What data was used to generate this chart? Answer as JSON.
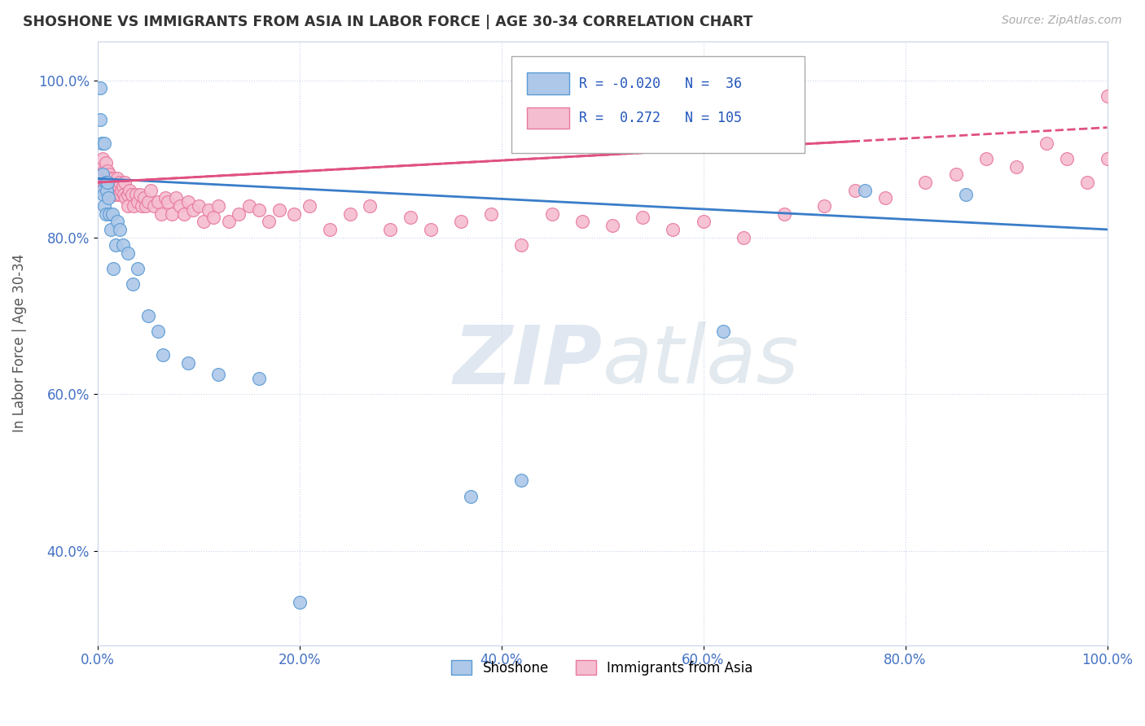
{
  "title": "SHOSHONE VS IMMIGRANTS FROM ASIA IN LABOR FORCE | AGE 30-34 CORRELATION CHART",
  "source_text": "Source: ZipAtlas.com",
  "ylabel": "In Labor Force | Age 30-34",
  "xlim": [
    0.0,
    1.0
  ],
  "ylim": [
    0.28,
    1.05
  ],
  "xticks": [
    0.0,
    0.2,
    0.4,
    0.6,
    0.8,
    1.0
  ],
  "xtick_labels": [
    "0.0%",
    "20.0%",
    "40.0%",
    "60.0%",
    "80.0%",
    "100.0%"
  ],
  "yticks": [
    0.4,
    0.6,
    0.8,
    1.0
  ],
  "ytick_labels": [
    "40.0%",
    "60.0%",
    "80.0%",
    "100.0%"
  ],
  "shoshone_color": "#adc8e8",
  "asia_color": "#f5bdd0",
  "shoshone_edge_color": "#5b9bd5",
  "asia_edge_color": "#e8799f",
  "shoshone_line_color": "#3a7dc9",
  "asia_line_color": "#e05080",
  "background_color": "#ffffff",
  "watermark_color": "#ccd8e8",
  "shoshone_trend_x0": 0.0,
  "shoshone_trend_x1": 1.0,
  "shoshone_trend_y0": 0.875,
  "shoshone_trend_y1": 0.81,
  "asia_trend_x0": 0.0,
  "asia_trend_x1": 1.0,
  "asia_trend_y0": 0.87,
  "asia_trend_y1": 0.94,
  "shoshone_x": [
    0.003,
    0.003,
    0.004,
    0.005,
    0.005,
    0.006,
    0.007,
    0.007,
    0.008,
    0.008,
    0.009,
    0.01,
    0.011,
    0.012,
    0.013,
    0.015,
    0.016,
    0.018,
    0.02,
    0.022,
    0.025,
    0.03,
    0.035,
    0.04,
    0.05,
    0.06,
    0.065,
    0.09,
    0.12,
    0.16,
    0.2,
    0.37,
    0.42,
    0.62,
    0.76,
    0.86
  ],
  "shoshone_y": [
    0.99,
    0.95,
    0.92,
    0.88,
    0.86,
    0.855,
    0.92,
    0.84,
    0.87,
    0.83,
    0.86,
    0.87,
    0.85,
    0.83,
    0.81,
    0.83,
    0.76,
    0.79,
    0.82,
    0.81,
    0.79,
    0.78,
    0.74,
    0.76,
    0.7,
    0.68,
    0.65,
    0.64,
    0.625,
    0.62,
    0.335,
    0.47,
    0.49,
    0.68,
    0.86,
    0.855
  ],
  "asia_x": [
    0.003,
    0.003,
    0.004,
    0.005,
    0.005,
    0.006,
    0.006,
    0.007,
    0.007,
    0.008,
    0.008,
    0.009,
    0.009,
    0.01,
    0.01,
    0.011,
    0.011,
    0.012,
    0.012,
    0.013,
    0.013,
    0.014,
    0.015,
    0.015,
    0.016,
    0.017,
    0.018,
    0.018,
    0.019,
    0.02,
    0.02,
    0.021,
    0.022,
    0.023,
    0.024,
    0.025,
    0.026,
    0.027,
    0.028,
    0.03,
    0.03,
    0.032,
    0.034,
    0.036,
    0.038,
    0.04,
    0.042,
    0.044,
    0.046,
    0.048,
    0.05,
    0.053,
    0.056,
    0.06,
    0.063,
    0.067,
    0.07,
    0.074,
    0.078,
    0.082,
    0.086,
    0.09,
    0.095,
    0.1,
    0.105,
    0.11,
    0.115,
    0.12,
    0.13,
    0.14,
    0.15,
    0.16,
    0.17,
    0.18,
    0.195,
    0.21,
    0.23,
    0.25,
    0.27,
    0.29,
    0.31,
    0.33,
    0.36,
    0.39,
    0.42,
    0.45,
    0.48,
    0.51,
    0.54,
    0.57,
    0.6,
    0.64,
    0.68,
    0.72,
    0.75,
    0.78,
    0.82,
    0.85,
    0.88,
    0.91,
    0.94,
    0.96,
    0.98,
    1.0,
    1.0
  ],
  "asia_y": [
    0.87,
    0.89,
    0.88,
    0.87,
    0.9,
    0.88,
    0.86,
    0.885,
    0.87,
    0.88,
    0.895,
    0.87,
    0.88,
    0.885,
    0.87,
    0.875,
    0.86,
    0.88,
    0.865,
    0.87,
    0.855,
    0.875,
    0.87,
    0.86,
    0.875,
    0.855,
    0.87,
    0.86,
    0.865,
    0.875,
    0.855,
    0.865,
    0.87,
    0.855,
    0.86,
    0.865,
    0.855,
    0.87,
    0.85,
    0.855,
    0.84,
    0.86,
    0.855,
    0.84,
    0.855,
    0.845,
    0.855,
    0.84,
    0.85,
    0.84,
    0.845,
    0.86,
    0.84,
    0.845,
    0.83,
    0.85,
    0.845,
    0.83,
    0.85,
    0.84,
    0.83,
    0.845,
    0.835,
    0.84,
    0.82,
    0.835,
    0.825,
    0.84,
    0.82,
    0.83,
    0.84,
    0.835,
    0.82,
    0.835,
    0.83,
    0.84,
    0.81,
    0.83,
    0.84,
    0.81,
    0.825,
    0.81,
    0.82,
    0.83,
    0.79,
    0.83,
    0.82,
    0.815,
    0.825,
    0.81,
    0.82,
    0.8,
    0.83,
    0.84,
    0.86,
    0.85,
    0.87,
    0.88,
    0.9,
    0.89,
    0.92,
    0.9,
    0.87,
    0.98,
    0.9
  ]
}
